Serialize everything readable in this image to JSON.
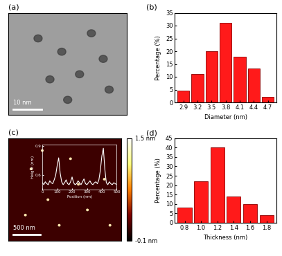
{
  "chart_data": [
    {
      "type": "image",
      "panel": "(a)",
      "scale_bar": "10 nm"
    },
    {
      "type": "bar",
      "panel": "(b)",
      "categories": [
        "2.9",
        "3.2",
        "3.5",
        "3.8",
        "4.1",
        "4.4",
        "4.7"
      ],
      "values": [
        4.5,
        11,
        20,
        31,
        17.8,
        13.3,
        2.2
      ],
      "color": "#ff1a1a",
      "xlabel": "Diameter (nm)",
      "ylabel": "Percentage (%)",
      "ylim": [
        0,
        35
      ],
      "yticks": [
        0,
        5,
        10,
        15,
        20,
        25,
        30,
        35
      ]
    },
    {
      "type": "image",
      "panel": "(c)",
      "scale_bar": "500 nm",
      "colorbar_lim": [
        -0.1,
        1.5
      ],
      "colorbar_ticks": [
        {
          "value": 1.5,
          "label": "1.5 nm"
        },
        {
          "value": -0.1,
          "label": "-0.1 nm"
        }
      ],
      "inset": {
        "type": "line",
        "x": [
          0,
          10,
          20,
          30,
          40,
          50,
          60,
          70,
          80,
          90,
          100,
          110,
          120,
          130,
          140,
          150,
          160,
          170,
          180,
          190,
          200,
          210,
          220,
          230,
          240,
          250,
          260,
          270,
          280,
          290,
          300,
          310,
          320,
          330,
          340,
          350,
          360,
          370,
          380,
          390,
          400,
          410,
          420,
          430,
          440,
          450,
          460,
          470,
          480,
          490,
          500
        ],
        "values": [
          0.52,
          0.5,
          0.53,
          0.51,
          0.5,
          0.54,
          0.52,
          0.51,
          0.55,
          0.6,
          0.7,
          0.78,
          0.62,
          0.53,
          0.5,
          0.52,
          0.55,
          0.51,
          0.5,
          0.53,
          0.58,
          0.52,
          0.5,
          0.51,
          0.54,
          0.52,
          0.5,
          0.53,
          0.56,
          0.51,
          0.5,
          0.52,
          0.54,
          0.51,
          0.5,
          0.52,
          0.53,
          0.51,
          0.55,
          0.65,
          0.8,
          0.88,
          0.66,
          0.52,
          0.5,
          0.53,
          0.51,
          0.5,
          0.52,
          0.51,
          0.5
        ],
        "color": "#ffffff",
        "xlabel": "Position (nm)",
        "ylabel": "Height (nm)",
        "xlim": [
          0,
          500
        ],
        "xticks": [
          0,
          100,
          200,
          300,
          400,
          500
        ],
        "ylim": [
          0.45,
          0.92
        ],
        "yticks": [
          0.6,
          0.9
        ]
      }
    },
    {
      "type": "bar",
      "panel": "(d)",
      "categories": [
        "0.8",
        "1.0",
        "1.2",
        "1.4",
        "1.6",
        "1.8"
      ],
      "values": [
        8,
        22,
        40,
        14,
        10,
        4
      ],
      "color": "#ff1a1a",
      "xlabel": "Thickness (nm)",
      "ylabel": "Percentage (%)",
      "ylim": [
        0,
        45
      ],
      "yticks": [
        0,
        5,
        10,
        15,
        20,
        25,
        30,
        35,
        40,
        45
      ]
    }
  ]
}
